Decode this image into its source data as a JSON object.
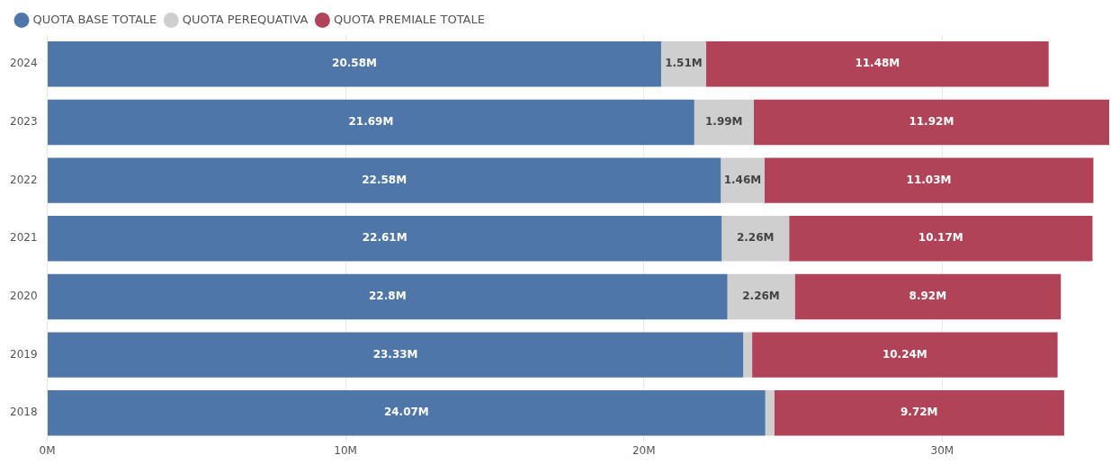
{
  "chart_data": {
    "type": "bar",
    "orientation": "horizontal",
    "stacked": true,
    "categories": [
      "2024",
      "2023",
      "2022",
      "2021",
      "2020",
      "2019",
      "2018"
    ],
    "series": [
      {
        "name": "QUOTA BASE TOTALE",
        "color": "#4e76a8",
        "values": [
          20.58,
          21.69,
          22.58,
          22.61,
          22.8,
          23.33,
          24.07
        ],
        "value_labels": [
          "20.58M",
          "21.69M",
          "22.58M",
          "22.61M",
          "22.8M",
          "23.33M",
          "24.07M"
        ]
      },
      {
        "name": "QUOTA PEREQUATIVA",
        "color": "#cfcfcf",
        "values": [
          1.51,
          1.99,
          1.46,
          2.26,
          2.26,
          0.3,
          0.3
        ],
        "value_labels": [
          "1.51M",
          "1.99M",
          "1.46M",
          "2.26M",
          "2.26M",
          null,
          null
        ]
      },
      {
        "name": "QUOTA PREMIALE TOTALE",
        "color": "#b04357",
        "values": [
          11.48,
          11.92,
          11.03,
          10.17,
          8.92,
          10.24,
          9.72
        ],
        "value_labels": [
          "11.48M",
          "11.92M",
          "11.03M",
          "10.17M",
          "8.92M",
          "10.24M",
          "9.72M"
        ]
      }
    ],
    "xlim": [
      0,
      35.6
    ],
    "xticks": [
      {
        "value": 0,
        "label": "0M"
      },
      {
        "value": 10,
        "label": "10M"
      },
      {
        "value": 20,
        "label": "20M"
      },
      {
        "value": 30,
        "label": "30M"
      }
    ],
    "grid": "x",
    "legend": "top left"
  }
}
